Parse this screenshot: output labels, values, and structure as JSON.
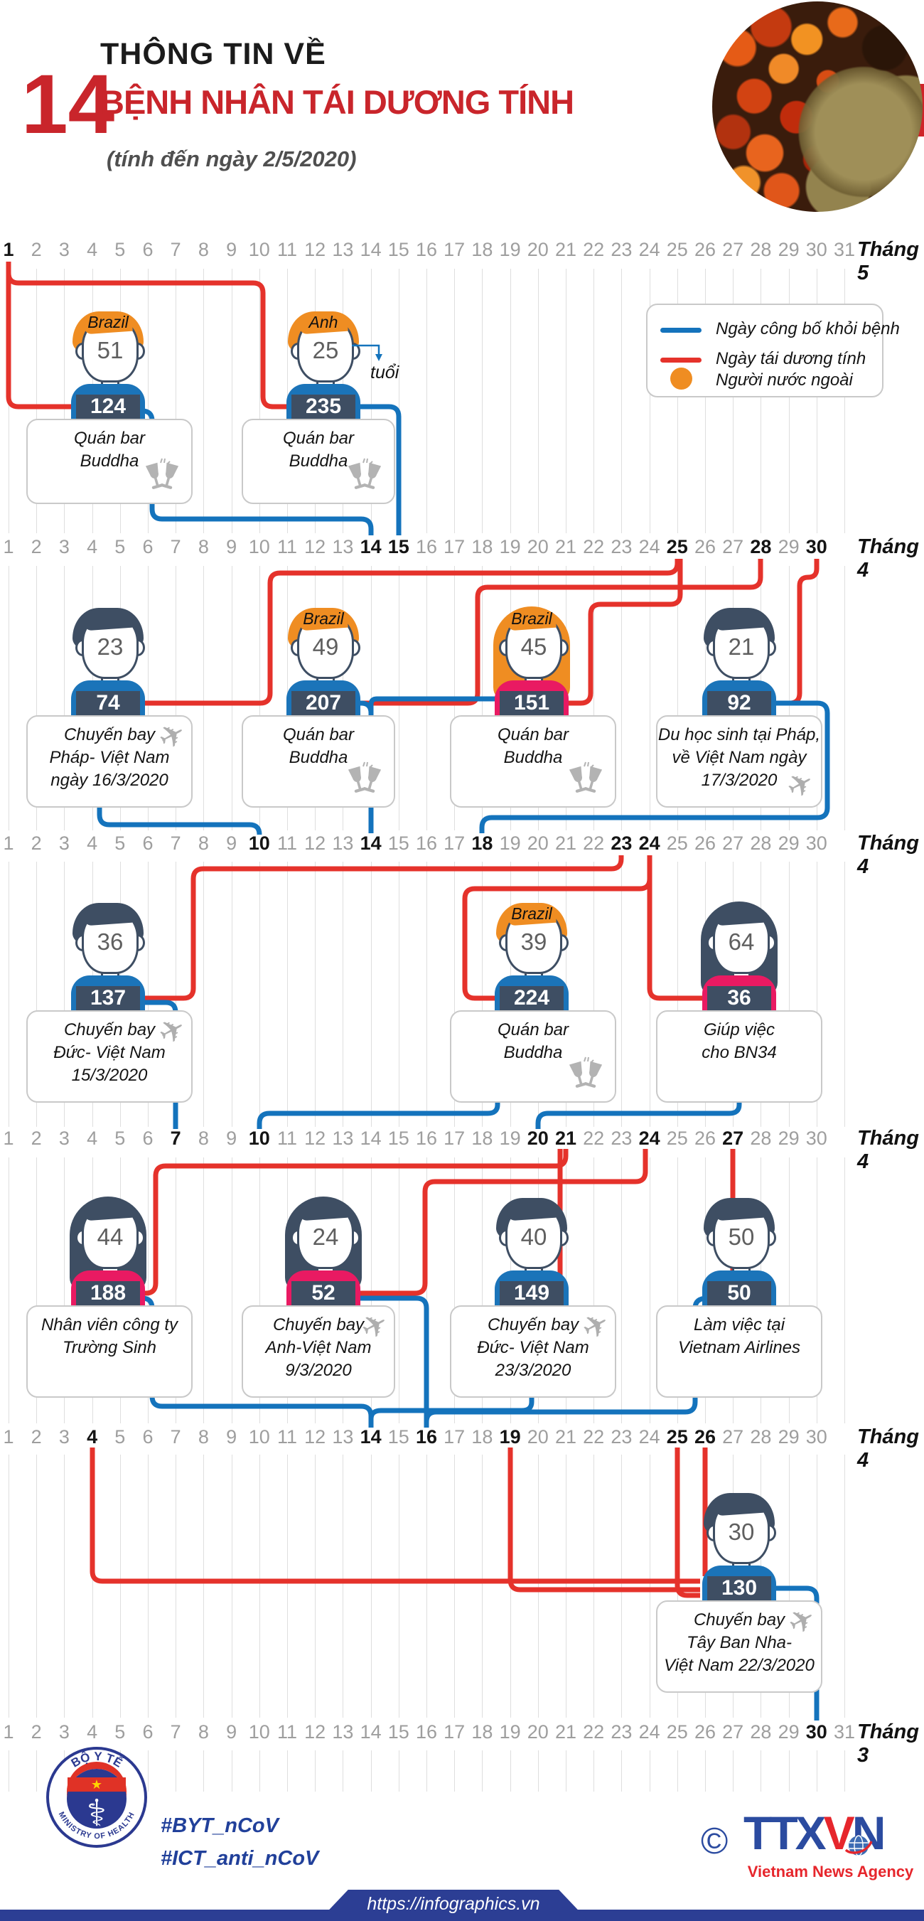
{
  "header": {
    "big_number": "14",
    "kicker": "THÔNG TIN VỀ",
    "title": "BỆNH NHÂN TÁI DƯƠNG TÍNH",
    "subtitle": "(tính đến ngày 2/5/2020)"
  },
  "legend": {
    "items": [
      {
        "type": "line",
        "color": "#1473bc",
        "label": "Ngày công bố khỏi bệnh"
      },
      {
        "type": "line",
        "color": "#e5322b",
        "label": "Ngày tái dương tính"
      },
      {
        "type": "dot",
        "color": "#ef8d22",
        "label": "Người nước ngoài"
      }
    ]
  },
  "timelines": [
    {
      "month": "Tháng 5",
      "days": 31,
      "bold_days": [
        1
      ]
    },
    {
      "month": "Tháng 4",
      "days": 30,
      "bold_days": [
        14,
        15,
        25,
        28,
        30
      ]
    },
    {
      "month": "Tháng 4",
      "days": 30,
      "bold_days": [
        10,
        14,
        18,
        23,
        24
      ]
    },
    {
      "month": "Tháng 4",
      "days": 30,
      "bold_days": [
        7,
        10,
        20,
        21,
        24,
        27
      ]
    },
    {
      "month": "Tháng 4",
      "days": 30,
      "bold_days": [
        4,
        14,
        16,
        19,
        25,
        26
      ]
    },
    {
      "month": "Tháng 3",
      "days": 31,
      "bold_days": [
        30
      ]
    }
  ],
  "patients": [
    {
      "number": "124",
      "age": "51",
      "country": "Brazil",
      "foreign": true,
      "gender": "male",
      "row": 1,
      "col": 1,
      "desc": [
        "Quán bar",
        "Buddha"
      ],
      "icon": "cheers"
    },
    {
      "number": "235",
      "age": "25",
      "country": "Anh",
      "foreign": true,
      "gender": "male",
      "row": 1,
      "col": 2,
      "desc": [
        "Quán bar",
        "Buddha"
      ],
      "icon": "cheers",
      "age_note": "tuổi"
    },
    {
      "number": "74",
      "age": "23",
      "country": "",
      "foreign": false,
      "gender": "male",
      "row": 2,
      "col": 1,
      "desc": [
        "Chuyến bay",
        "Pháp- Việt Nam",
        "ngày 16/3/2020"
      ],
      "icon": "plane"
    },
    {
      "number": "207",
      "age": "49",
      "country": "Brazil",
      "foreign": true,
      "gender": "male",
      "row": 2,
      "col": 2,
      "desc": [
        "Quán bar",
        "Buddha"
      ],
      "icon": "cheers"
    },
    {
      "number": "151",
      "age": "45",
      "country": "Brazil",
      "foreign": true,
      "gender": "female",
      "row": 2,
      "col": 3,
      "desc": [
        "Quán bar",
        "Buddha"
      ],
      "icon": "cheers"
    },
    {
      "number": "92",
      "age": "21",
      "country": "",
      "foreign": false,
      "gender": "male",
      "row": 2,
      "col": 4,
      "desc": [
        "Du học sinh tại Pháp,",
        "về Việt Nam ngày",
        "17/3/2020"
      ],
      "icon": "plane",
      "icon_pos": "bottom"
    },
    {
      "number": "137",
      "age": "36",
      "country": "",
      "foreign": false,
      "gender": "male",
      "row": 3,
      "col": 1,
      "desc": [
        "Chuyến bay",
        "Đức- Việt Nam",
        "15/3/2020"
      ],
      "icon": "plane"
    },
    {
      "number": "224",
      "age": "39",
      "country": "Brazil",
      "foreign": true,
      "gender": "male",
      "row": 3,
      "col": 3,
      "desc": [
        "Quán bar",
        "Buddha"
      ],
      "icon": "cheers"
    },
    {
      "number": "36",
      "age": "64",
      "country": "",
      "foreign": false,
      "gender": "female",
      "row": 3,
      "col": 4,
      "desc": [
        "Giúp việc",
        "cho BN34"
      ]
    },
    {
      "number": "188",
      "age": "44",
      "country": "",
      "foreign": false,
      "gender": "female",
      "row": 4,
      "col": 1,
      "desc": [
        "Nhân viên công ty",
        "Trường Sinh"
      ]
    },
    {
      "number": "52",
      "age": "24",
      "country": "",
      "foreign": false,
      "gender": "female",
      "row": 4,
      "col": 2,
      "desc": [
        "Chuyến bay",
        "Anh-Việt Nam",
        "9/3/2020"
      ],
      "icon": "plane"
    },
    {
      "number": "149",
      "age": "40",
      "country": "",
      "foreign": false,
      "gender": "male",
      "row": 4,
      "col": 3,
      "desc": [
        "Chuyến bay",
        "Đức- Việt Nam",
        "23/3/2020"
      ],
      "icon": "plane"
    },
    {
      "number": "50",
      "age": "50",
      "country": "",
      "foreign": false,
      "gender": "male",
      "row": 4,
      "col": 4,
      "desc": [
        "Làm việc tại",
        "Vietnam Airlines"
      ]
    },
    {
      "number": "130",
      "age": "30",
      "country": "",
      "foreign": false,
      "gender": "male",
      "row": 5,
      "col": 4,
      "desc": [
        "Chuyến bay",
        "Tây Ban Nha-",
        "Việt Nam 22/3/2020"
      ],
      "icon": "plane"
    }
  ],
  "footer": {
    "hashtags": [
      "#BYT_nCoV",
      "#ICT_anti_nCoV"
    ],
    "url": "https://infographics.vn",
    "copyright": "©",
    "agency_letters": {
      "a": "TTX",
      "b": "V",
      "c": "N"
    },
    "agency_name": "Vietnam News Agency",
    "moh_top": "BỘ Y TẾ",
    "moh_bottom": "MINISTRY OF HEALTH"
  },
  "colors": {
    "red_line": "#e5322b",
    "blue_line": "#1473bc",
    "orange": "#ef8d22",
    "navy": "#3e4e63",
    "pink_shirt": "#e91a62",
    "blue_shirt": "#1b74b9",
    "header_red": "#c9252b",
    "footer_blue": "#2c3e94",
    "timeline_gray": "#9e9e9e"
  }
}
